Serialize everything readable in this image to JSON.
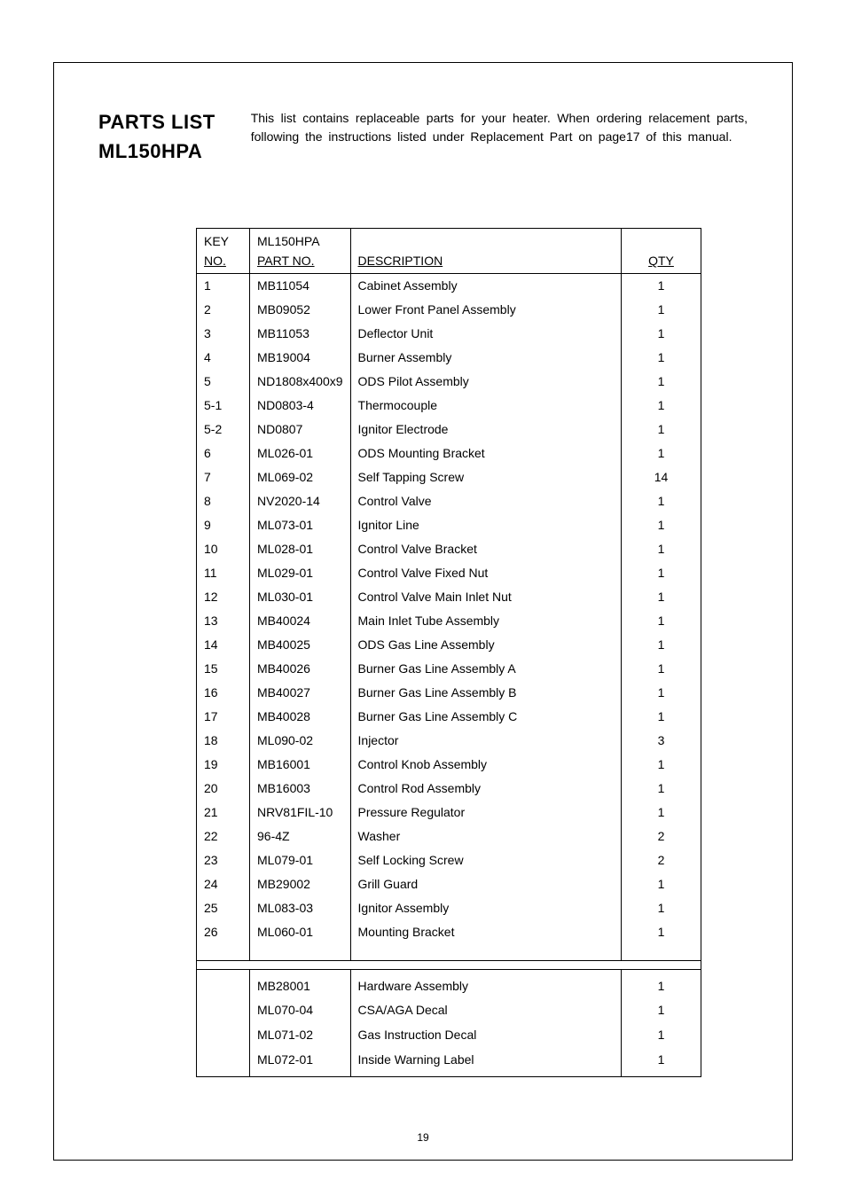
{
  "title": {
    "line1": "PARTS  LIST",
    "line2": "ML150HPA"
  },
  "intro": "This list contains replaceable parts for your heater. When ordering relacement parts, following  the instructions listed under Replacement Part on page17 of this manual.",
  "headers": {
    "key": "KEY",
    "no": "NO.",
    "model": "ML150HPA",
    "partno": "PART NO.",
    "description": "DESCRIPTION",
    "qty": "QTY"
  },
  "rows": [
    {
      "key": "1",
      "part": "MB11054",
      "desc": "Cabinet   Assembly",
      "qty": "1"
    },
    {
      "key": "2",
      "part": "MB09052",
      "desc": "Lower  Front  Panel  Assembly",
      "qty": "1"
    },
    {
      "key": "3",
      "part": "MB11053",
      "desc": "Deflector  Unit",
      "qty": "1"
    },
    {
      "key": "4",
      "part": "MB19004",
      "desc": "Burner  Assembly",
      "qty": "1"
    },
    {
      "key": "5",
      "part": "ND1808x400x9",
      "desc": "ODS Pilot   Assembly",
      "qty": "1"
    },
    {
      "key": "5-1",
      "part": "ND0803-4",
      "desc": "Thermocouple",
      "qty": "1"
    },
    {
      "key": "5-2",
      "part": "ND0807",
      "desc": "Ignitor  Electrode",
      "qty": "1"
    },
    {
      "key": "6",
      "part": "ML026-01",
      "desc": "ODS  Mounting  Bracket",
      "qty": "1"
    },
    {
      "key": "7",
      "part": "ML069-02",
      "desc": "Self   Tapping  Screw",
      "qty": "14"
    },
    {
      "key": "8",
      "part": "NV2020-14",
      "desc": "Control  Valve",
      "qty": "1"
    },
    {
      "key": "9",
      "part": "ML073-01",
      "desc": "Ignitor   Line",
      "qty": "1"
    },
    {
      "key": "10",
      "part": "ML028-01",
      "desc": "Control  Valve Bracket",
      "qty": "1"
    },
    {
      "key": "11",
      "part": "ML029-01",
      "desc": "Control  Valve Fixed  Nut",
      "qty": "1"
    },
    {
      "key": "12",
      "part": "ML030-01",
      "desc": "Control  Valve Main  Inlet  Nut",
      "qty": "1"
    },
    {
      "key": "13",
      "part": "MB40024",
      "desc": "Main  Inlet  Tube  Assembly",
      "qty": "1"
    },
    {
      "key": "14",
      "part": "MB40025",
      "desc": "ODS   Gas  Line  Assembly",
      "qty": "1"
    },
    {
      "key": "15",
      "part": "MB40026",
      "desc": "Burner  Gas  Line   Assembly  A",
      "qty": "1"
    },
    {
      "key": "16",
      "part": "MB40027",
      "desc": "Burner  Gas  Line   Assembly  B",
      "qty": "1"
    },
    {
      "key": "17",
      "part": "MB40028",
      "desc": "Burner  Gas  Line   Assembly  C",
      "qty": "1"
    },
    {
      "key": "18",
      "part": "ML090-02",
      "desc": "Injector",
      "qty": "3"
    },
    {
      "key": "19",
      "part": "MB16001",
      "desc": "Control  Knob  Assembly",
      "qty": "1"
    },
    {
      "key": "20",
      "part": "MB16003",
      "desc": "Control  Rod  Assembly",
      "qty": "1"
    },
    {
      "key": "21",
      "part": "NRV81FIL-10",
      "desc": "Pressure  Regulator",
      "qty": "1"
    },
    {
      "key": "22",
      "part": "96-4Z",
      "desc": "Washer",
      "qty": "2"
    },
    {
      "key": "23",
      "part": "ML079-01",
      "desc": "Self  Locking  Screw",
      "qty": "2"
    },
    {
      "key": "24",
      "part": "MB29002",
      "desc": "Grill  Guard",
      "qty": "1"
    },
    {
      "key": "25",
      "part": "ML083-03",
      "desc": "Ignitor  Assembly",
      "qty": "1"
    },
    {
      "key": "26",
      "part": "ML060-01",
      "desc": "Mounting  Bracket",
      "qty": "1"
    }
  ],
  "extra_rows": [
    {
      "part": "MB28001",
      "desc": "Hardware  Assembly",
      "qty": "1"
    },
    {
      "part": "ML070-04",
      "desc": "CSA/AGA  Decal",
      "qty": "1"
    },
    {
      "part": "ML071-02",
      "desc": "Gas Instruction  Decal",
      "qty": "1"
    },
    {
      "part": "ML072-01",
      "desc": "Inside   Warning  Label",
      "qty": "1"
    }
  ],
  "page_number": "19"
}
